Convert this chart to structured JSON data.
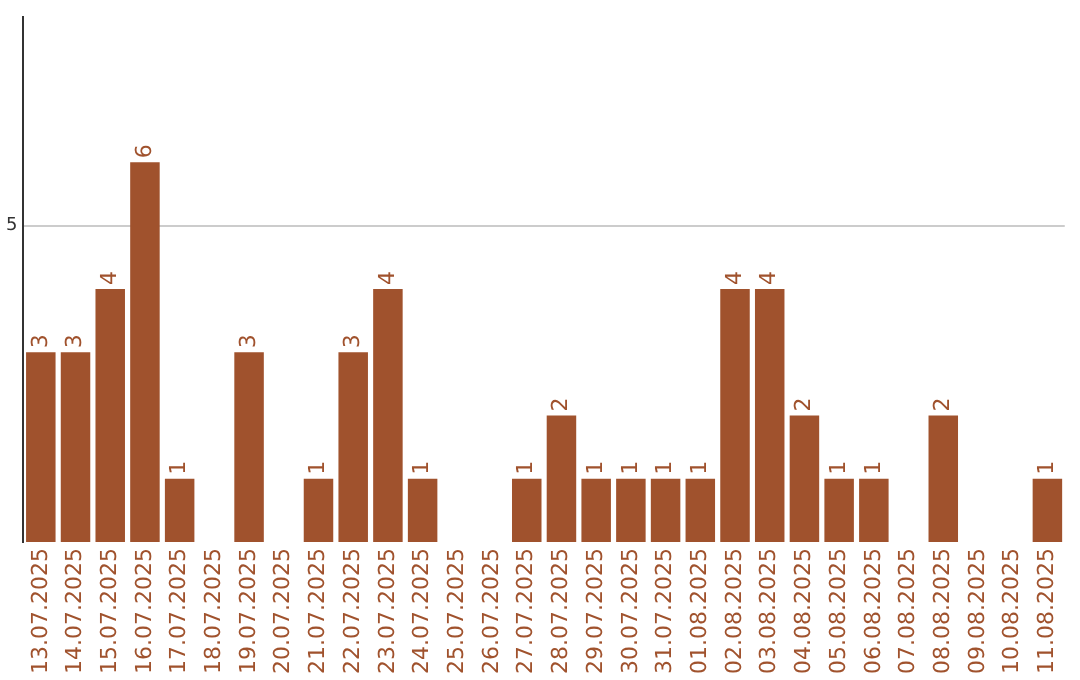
{
  "chart_data": {
    "type": "bar",
    "categories": [
      "13.07.2025",
      "14.07.2025",
      "15.07.2025",
      "16.07.2025",
      "17.07.2025",
      "18.07.2025",
      "19.07.2025",
      "20.07.2025",
      "21.07.2025",
      "22.07.2025",
      "23.07.2025",
      "24.07.2025",
      "25.07.2025",
      "26.07.2025",
      "27.07.2025",
      "28.07.2025",
      "29.07.2025",
      "30.07.2025",
      "31.07.2025",
      "01.08.2025",
      "02.08.2025",
      "03.08.2025",
      "04.08.2025",
      "05.08.2025",
      "06.08.2025",
      "07.08.2025",
      "08.08.2025",
      "09.08.2025",
      "10.08.2025",
      "11.08.2025"
    ],
    "values": [
      3,
      3,
      4,
      6,
      1,
      0,
      3,
      0,
      1,
      3,
      4,
      1,
      0,
      0,
      1,
      2,
      1,
      1,
      1,
      1,
      4,
      4,
      2,
      1,
      1,
      0,
      2,
      0,
      0,
      1
    ],
    "value_labels": [
      "3",
      "3",
      "4",
      "6",
      "1",
      null,
      "3",
      null,
      "1",
      "3",
      "4",
      "1",
      null,
      null,
      "1",
      "2",
      "1",
      "1",
      "1",
      "1",
      "4",
      "4",
      "2",
      "1",
      "1",
      null,
      "2",
      null,
      null,
      "1"
    ],
    "color": "#a0522d",
    "ylim": [
      0,
      8.3
    ],
    "yticks": [
      5
    ],
    "grid": "y",
    "legend": false
  }
}
